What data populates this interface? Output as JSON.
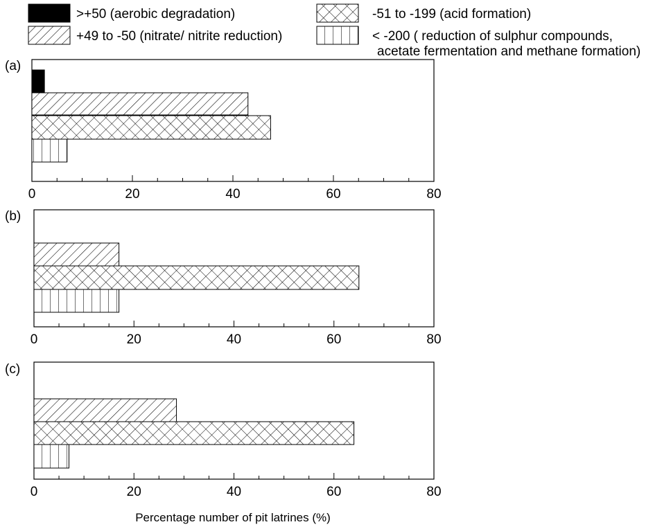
{
  "legend": [
    {
      "label": ">+50  (aerobic degradation)",
      "pattern": "solid"
    },
    {
      "label": "-51 to -199 (acid formation)",
      "pattern": "crosshatch"
    },
    {
      "label": "+49 to -50 (nitrate/ nitrite reduction)",
      "pattern": "diagonal"
    },
    {
      "label": "< -200 ( reduction of sulphur compounds,",
      "label2": "acetate fermentation and methane formation)",
      "pattern": "vertical"
    }
  ],
  "xlabel": "Percentage number of pit latrines (%)",
  "chart_data": [
    {
      "type": "bar",
      "orientation": "horizontal",
      "panel_label": "(a)",
      "series": [
        {
          "category": ">+50",
          "value": 2.5
        },
        {
          "category": "+49 to -50",
          "value": 43
        },
        {
          "category": "-51 to -199",
          "value": 47.5
        },
        {
          "category": "< -200",
          "value": 7
        }
      ],
      "xlim": [
        0,
        80
      ],
      "xticks": [
        "0",
        "20",
        "40",
        "60",
        "80"
      ],
      "grid": false
    },
    {
      "type": "bar",
      "orientation": "horizontal",
      "panel_label": "(b)",
      "series": [
        {
          "category": "+49 to -50",
          "value": 17
        },
        {
          "category": "-51 to -199",
          "value": 65
        },
        {
          "category": "< -200",
          "value": 17
        }
      ],
      "xlim": [
        0,
        80
      ],
      "xticks": [
        "0",
        "20",
        "40",
        "60",
        "80"
      ],
      "grid": false
    },
    {
      "type": "bar",
      "orientation": "horizontal",
      "panel_label": "(c)",
      "series": [
        {
          "category": "+49 to -50",
          "value": 28.5
        },
        {
          "category": "-51 to -199",
          "value": 64
        },
        {
          "category": "< -200",
          "value": 7
        }
      ],
      "xlim": [
        0,
        80
      ],
      "xticks": [
        "0",
        "20",
        "40",
        "60",
        "80"
      ],
      "grid": false
    }
  ]
}
